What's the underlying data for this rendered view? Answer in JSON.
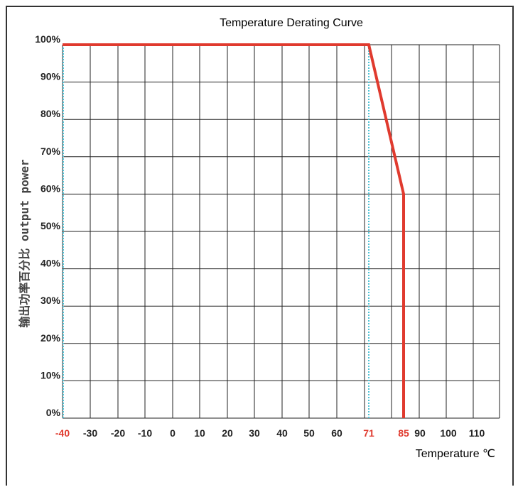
{
  "chart_data": {
    "type": "line",
    "title": "Temperature Derating Curve",
    "xlabel": "Temperature ℃",
    "ylabel": "输出功率百分比 output power",
    "x_ticks": [
      "-40",
      "-30",
      "-20",
      "-10",
      "0",
      "10",
      "20",
      "30",
      "40",
      "50",
      "60",
      "71",
      "85",
      "90",
      "100",
      "110"
    ],
    "x_ticks_highlighted": [
      "-40",
      "71",
      "85"
    ],
    "y_ticks": [
      "0%",
      "10%",
      "20%",
      "30%",
      "40%",
      "50%",
      "60%",
      "70%",
      "80%",
      "90%",
      "100%"
    ],
    "ylim": [
      0,
      100
    ],
    "series": [
      {
        "x": [
          -40,
          71,
          85,
          85
        ],
        "y": [
          100,
          100,
          60,
          0
        ],
        "color": "#e03a2e"
      }
    ],
    "reference_lines_x": [
      -40,
      71
    ],
    "reference_line_color": "#4fc3d6",
    "grid": true
  }
}
